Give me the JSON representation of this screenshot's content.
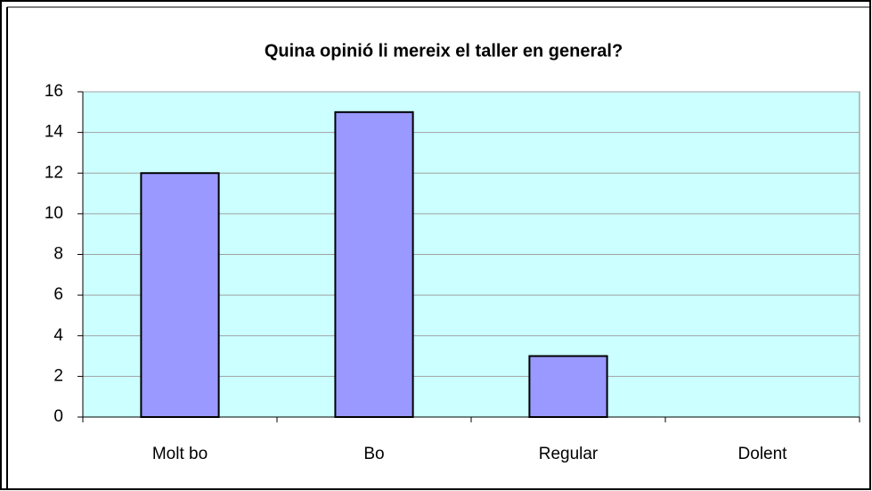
{
  "chart_data": {
    "type": "bar",
    "title": "Quina opinió li mereix el taller en general?",
    "categories": [
      "Molt bo",
      "Bo",
      "Regular",
      "Dolent"
    ],
    "values": [
      12,
      15,
      3,
      0
    ],
    "color": "#9999ff",
    "ylim": [
      0,
      16
    ],
    "yticks": [
      0,
      2,
      4,
      6,
      8,
      10,
      12,
      14,
      16
    ],
    "grid": true
  }
}
